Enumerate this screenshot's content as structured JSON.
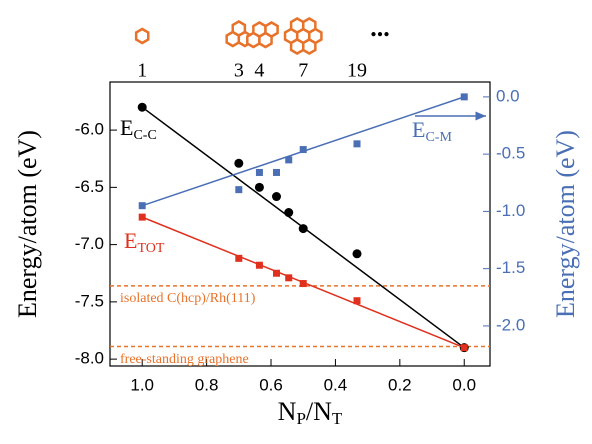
{
  "chart_data": {
    "type": "scatter",
    "xlabel": {
      "parts": [
        "N",
        "P",
        "/N",
        "T"
      ]
    },
    "ylabel": "Energy/atom (eV)",
    "y2label": "Energy/atom (eV)",
    "xlim": [
      1.1,
      -0.08
    ],
    "ylim": [
      -8.06,
      -5.58
    ],
    "y2lim": [
      -2.35,
      0.13
    ],
    "xticks": [
      {
        "value": 1.0,
        "label": "1.0"
      },
      {
        "value": 0.8,
        "label": "0.8"
      },
      {
        "value": 0.6,
        "label": "0.6"
      },
      {
        "value": 0.4,
        "label": "0.4"
      },
      {
        "value": 0.2,
        "label": "0.2"
      },
      {
        "value": 0.0,
        "label": "0.0"
      }
    ],
    "yticks": [
      {
        "value": -6.0,
        "label": "-6.0"
      },
      {
        "value": -6.5,
        "label": "-6.5"
      },
      {
        "value": -7.0,
        "label": "-7.0"
      },
      {
        "value": -7.5,
        "label": "-7.5"
      },
      {
        "value": -8.0,
        "label": "-8.0"
      }
    ],
    "y2ticks": [
      {
        "value": 0.0,
        "label": "0.0"
      },
      {
        "value": -0.5,
        "label": "-0.5"
      },
      {
        "value": -1.0,
        "label": "-1.0"
      },
      {
        "value": -1.5,
        "label": "-1.5"
      },
      {
        "value": -2.0,
        "label": "-2.0"
      }
    ],
    "y2color": "#4a6fb5",
    "top_labels": [
      "1",
      "3",
      "4",
      "7",
      "19",
      "..."
    ],
    "series": [
      {
        "name": "E",
        "name_sub": "C-C",
        "color": "#000000",
        "marker": "circle",
        "axis": "y",
        "x": [
          1.0,
          0.7,
          0.636,
          0.583,
          0.545,
          0.5,
          0.333,
          0.0
        ],
        "values": [
          -5.8,
          -6.29,
          -6.5,
          -6.58,
          -6.72,
          -6.86,
          -7.08,
          -7.9
        ]
      },
      {
        "name": "E",
        "name_sub": "TOT",
        "color": "#e0301e",
        "marker": "square",
        "axis": "y",
        "x": [
          1.0,
          0.7,
          0.636,
          0.583,
          0.545,
          0.5,
          0.333,
          0.0
        ],
        "values": [
          -6.76,
          -7.12,
          -7.18,
          -7.25,
          -7.29,
          -7.34,
          -7.49,
          -7.9
        ]
      },
      {
        "name": "E",
        "name_sub": "C-M",
        "color": "#4a6fb5",
        "marker": "square",
        "axis": "y2",
        "x": [
          1.0,
          0.7,
          0.636,
          0.583,
          0.545,
          0.5,
          0.333,
          0.0
        ],
        "values": [
          -0.95,
          -0.81,
          -0.66,
          -0.66,
          -0.55,
          -0.46,
          -0.41,
          0.0
        ]
      }
    ],
    "hlines": [
      {
        "value": -7.36,
        "label": "isolated C(hcp)/Rh(111)",
        "color": "#e8722a"
      },
      {
        "value": -7.89,
        "label": "free-standing graphene",
        "color": "#e8722a"
      }
    ]
  }
}
